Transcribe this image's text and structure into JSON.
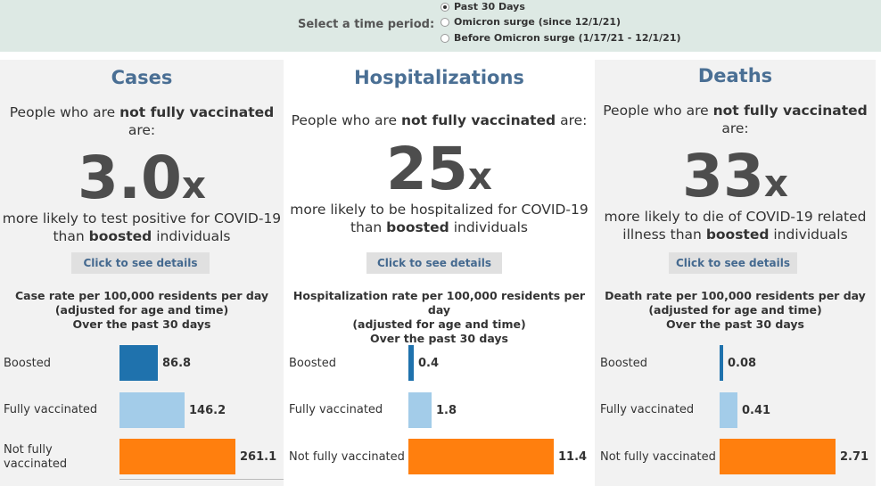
{
  "time_period": {
    "label": "Select a time period:",
    "options": [
      {
        "label": "Past 30 Days",
        "selected": true
      },
      {
        "label": "Omicron surge (since 12/1/21)",
        "selected": false
      },
      {
        "label": "Before Omicron surge (1/17/21 - 12/1/21)",
        "selected": false
      }
    ]
  },
  "colors": {
    "boosted": "#1f72ad",
    "fully_vaccinated": "#a3cce9",
    "not_fully_vaccinated": "#ff7f0e"
  },
  "panels": [
    {
      "title": "Cases",
      "intro_pre": "People who are ",
      "intro_bold": "not fully vaccinated",
      "intro_post": "are:",
      "multiplier": "3.0",
      "x": "x",
      "sub_pre": "more likely to test positive for COVID-19",
      "sub_mid": "than ",
      "sub_bold": "boosted",
      "sub_post": " individuals",
      "button": "Click to see details",
      "rate_title": "Case rate per 100,000 residents per day",
      "rate_adjusted": "(adjusted for age and time)",
      "rate_period": "Over the past 30 days",
      "bars": [
        {
          "label": "Boosted",
          "value": 86.8,
          "display": "86.8"
        },
        {
          "label": "Fully vaccinated",
          "value": 146.2,
          "display": "146.2"
        },
        {
          "label": "Not fully vaccinated",
          "value": 261.1,
          "display": "261.1"
        }
      ]
    },
    {
      "title": "Hospitalizations",
      "intro_pre": "People who are ",
      "intro_bold": "not fully vaccinated",
      "intro_post": " are:",
      "multiplier": "25",
      "x": "x",
      "sub_pre": "more likely to be hospitalized for COVID-19",
      "sub_mid": "than ",
      "sub_bold": "boosted",
      "sub_post": " individuals",
      "button": "Click to see details",
      "rate_title": "Hospitalization rate per 100,000 residents per day",
      "rate_adjusted": "(adjusted for age and time)",
      "rate_period": "Over the past 30 days",
      "bars": [
        {
          "label": "Boosted",
          "value": 0.4,
          "display": "0.4"
        },
        {
          "label": "Fully vaccinated",
          "value": 1.8,
          "display": "1.8"
        },
        {
          "label": "Not fully vaccinated",
          "value": 11.4,
          "display": "11.4"
        }
      ]
    },
    {
      "title": "Deaths",
      "intro_pre": "People who are ",
      "intro_bold": "not fully vaccinated",
      "intro_post": "are:",
      "multiplier": "33",
      "x": "x",
      "sub_pre": "more likely to die of COVID-19 related",
      "sub_mid": "illness than ",
      "sub_bold": "boosted",
      "sub_post": " individuals",
      "button": "Click to see details",
      "rate_title": "Death rate per 100,000 residents per day",
      "rate_adjusted": "(adjusted for age and time)",
      "rate_period": "Over the past 30 days",
      "bars": [
        {
          "label": "Boosted",
          "value": 0.08,
          "display": "0.08"
        },
        {
          "label": "Fully vaccinated",
          "value": 0.41,
          "display": "0.41"
        },
        {
          "label": "Not fully vaccinated",
          "value": 2.71,
          "display": "2.71"
        }
      ]
    }
  ]
}
